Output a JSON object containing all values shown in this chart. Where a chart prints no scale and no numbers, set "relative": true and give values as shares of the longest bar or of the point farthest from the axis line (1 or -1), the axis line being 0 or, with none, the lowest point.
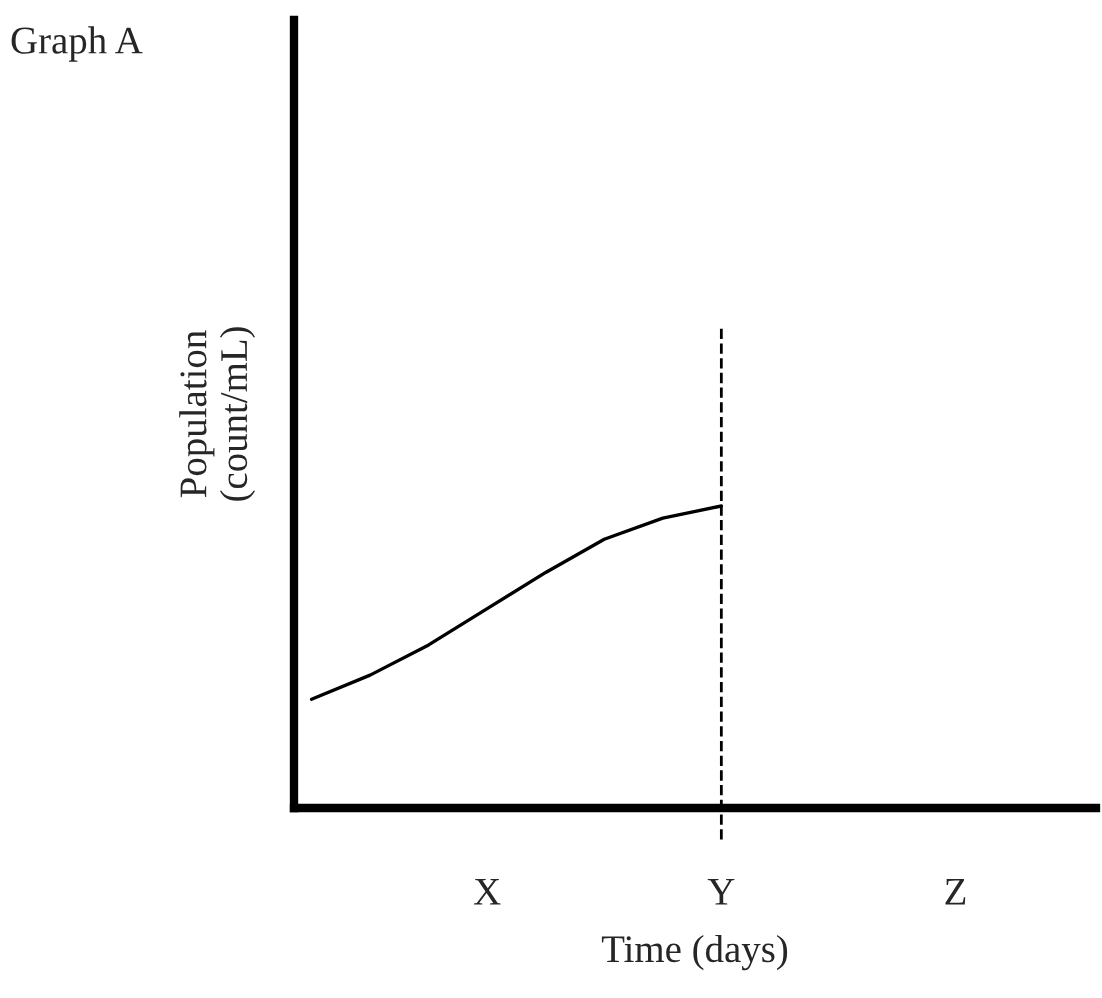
{
  "chart_data": {
    "type": "line",
    "title": "Graph A",
    "xlabel": "Time (days)",
    "ylabel": "Population\n(count/mL)",
    "relative": true,
    "categories": [
      null,
      null,
      null,
      "X",
      null,
      null,
      null,
      "Y",
      null,
      null,
      null,
      "Z",
      null,
      null
    ],
    "series": [
      {
        "color": "#000000",
        "values": [
          0.36,
          0.44,
          0.54,
          0.66,
          0.78,
          0.89,
          0.96,
          1.0,
          null,
          null,
          null,
          null,
          null,
          null
        ]
      }
    ],
    "ref_lines": [
      {
        "axis": "x",
        "value": "Y",
        "label": null,
        "color": "#000000",
        "line_style": "dashed"
      }
    ],
    "grid": false,
    "legend": false,
    "marker": "none",
    "line_style": "solid"
  }
}
